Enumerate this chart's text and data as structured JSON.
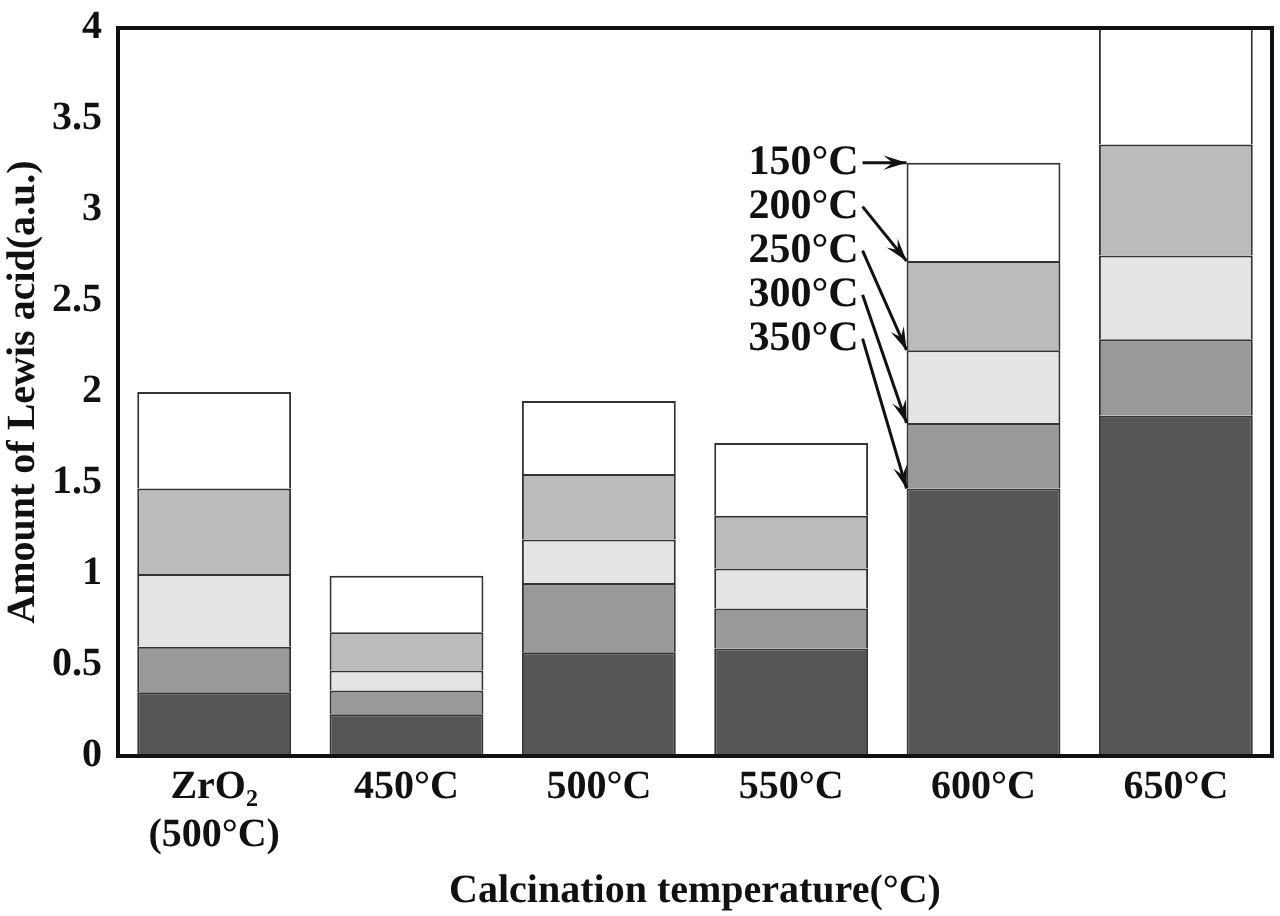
{
  "chart_data": {
    "type": "bar",
    "stacked": true,
    "xlabel": "Calcination temperature(°C)",
    "ylabel": "Amount of Lewis acid(a.u.)",
    "categories": [
      "ZrO₂ (500°C)",
      "450°C",
      "500°C",
      "550°C",
      "600°C",
      "650°C"
    ],
    "series": [
      {
        "name": "350°C",
        "color": "#555555",
        "values": [
          0.35,
          0.23,
          0.57,
          0.59,
          1.47,
          1.87
        ]
      },
      {
        "name": "300°C",
        "color": "#999999",
        "values": [
          0.25,
          0.13,
          0.38,
          0.22,
          0.36,
          0.42
        ]
      },
      {
        "name": "250°C",
        "color": "#e4e4e4",
        "values": [
          0.4,
          0.11,
          0.24,
          0.22,
          0.4,
          0.46
        ]
      },
      {
        "name": "200°C",
        "color": "#bbbbbb",
        "values": [
          0.47,
          0.21,
          0.36,
          0.29,
          0.49,
          0.61
        ]
      },
      {
        "name": "150°C",
        "color": "#ffffff",
        "values": [
          0.53,
          0.31,
          0.4,
          0.4,
          0.54,
          0.64
        ]
      }
    ],
    "ylim": [
      0,
      4
    ],
    "yticks": [
      0,
      0.5,
      1,
      1.5,
      2,
      2.5,
      3,
      3.5,
      4
    ],
    "grid": false,
    "legend": false
  }
}
